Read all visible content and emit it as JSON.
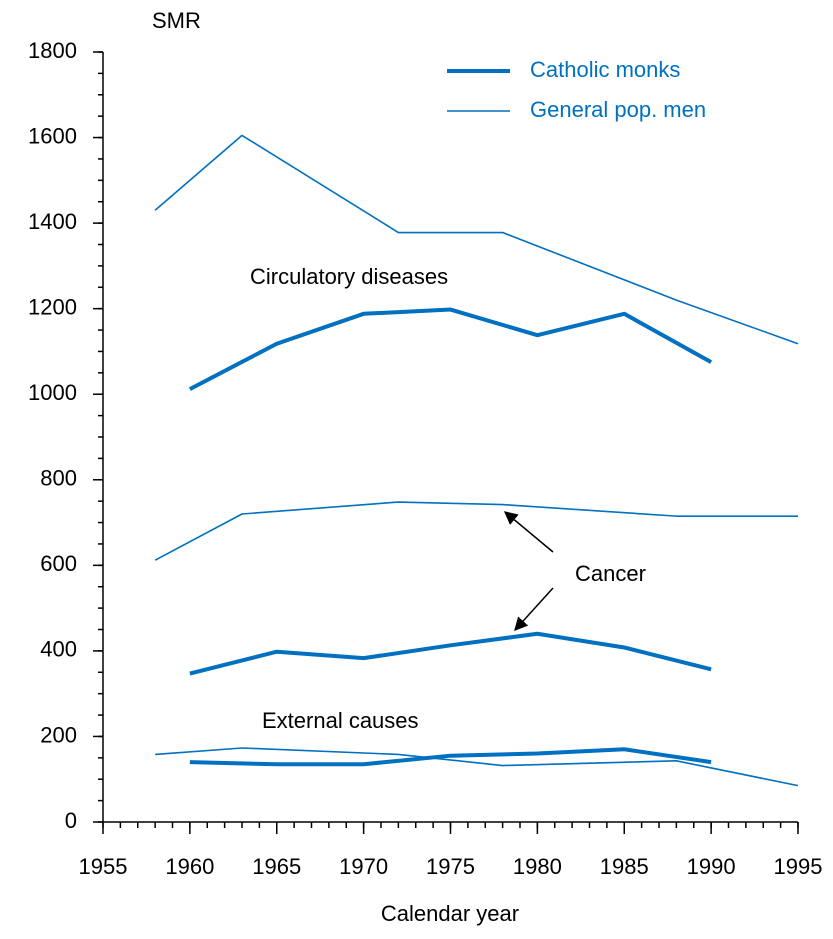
{
  "chart_data": {
    "type": "line",
    "ylabel": "SMR",
    "xlabel": "Calendar year",
    "xlim": [
      1955,
      1995
    ],
    "xticks": [
      1955,
      1960,
      1965,
      1970,
      1975,
      1980,
      1985,
      1990,
      1995
    ],
    "ylim": [
      0,
      1800
    ],
    "yticks": [
      0,
      200,
      400,
      600,
      800,
      1000,
      1200,
      1400,
      1600,
      1800
    ],
    "minor_ticks": {
      "x": 1,
      "y": 50
    },
    "legend": "upper right",
    "series": [
      {
        "name": "Catholic monks",
        "color": "#0070c0",
        "width": 4,
        "lines": [
          {
            "x": [
              1960,
              1965,
              1970,
              1975,
              1980,
              1985,
              1990
            ],
            "values": [
              1012,
              1118,
              1188,
              1198,
              1138,
              1188,
              1075
            ]
          },
          {
            "x": [
              1960,
              1965,
              1970,
              1975,
              1980,
              1985,
              1990
            ],
            "values": [
              347,
              398,
              383,
              413,
              440,
              408,
              357
            ]
          },
          {
            "x": [
              1960,
              1965,
              1970,
              1975,
              1980,
              1985,
              1990
            ],
            "values": [
              140,
              135,
              135,
              155,
              160,
              170,
              140
            ]
          }
        ]
      },
      {
        "name": "General pop. men",
        "color": "#0070c0",
        "width": 1.6,
        "lines": [
          {
            "x": [
              1958,
              1963,
              1972,
              1978,
              1988,
              1995
            ],
            "values": [
              1430,
              1605,
              1378,
              1378,
              1220,
              1118
            ]
          },
          {
            "x": [
              1958,
              1963,
              1972,
              1978,
              1988,
              1995
            ],
            "values": [
              612,
              720,
              748,
              742,
              715,
              715
            ]
          },
          {
            "x": [
              1958,
              1963,
              1972,
              1978,
              1988,
              1995
            ],
            "values": [
              158,
              173,
              158,
              132,
              143,
              85
            ]
          }
        ]
      }
    ],
    "annotations": [
      "Circulatory diseases",
      "Cancer",
      "External causes"
    ]
  }
}
